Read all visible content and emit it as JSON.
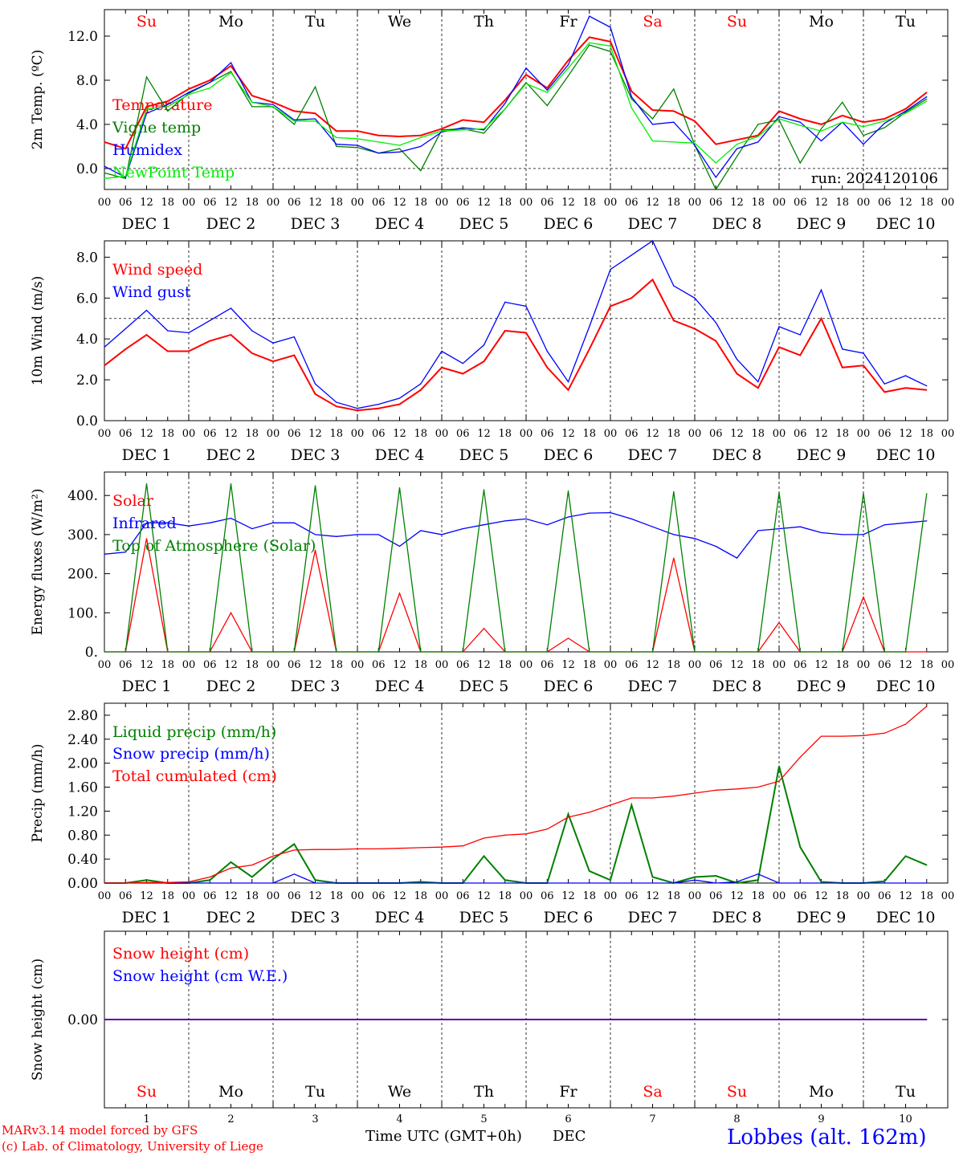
{
  "colors": {
    "red": "#ff0000",
    "green": "#008000",
    "blue": "#0000ff",
    "lightgreen": "#00ee00",
    "weekend": "#ff0000",
    "weekday": "#000000",
    "axis": "#000000"
  },
  "days": [
    "Su",
    "Mo",
    "Tu",
    "We",
    "Th",
    "Fr",
    "Sa",
    "Su",
    "Mo",
    "Tu"
  ],
  "day_weekend": [
    true,
    false,
    false,
    false,
    false,
    false,
    true,
    true,
    false,
    false
  ],
  "date_labels": [
    "DEC 1",
    "DEC 2",
    "DEC 3",
    "DEC 4",
    "DEC 5",
    "DEC 6",
    "DEC 7",
    "DEC 8",
    "DEC 9",
    "DEC 10"
  ],
  "hour_labels": [
    "00",
    "06",
    "12",
    "18"
  ],
  "bottom_day_numbers": [
    "1",
    "2",
    "3",
    "4",
    "5",
    "6",
    "7",
    "8",
    "9",
    "10"
  ],
  "footer": {
    "model": "MARv3.14 model forced by GFS",
    "lab": "(c) Lab. of Climatology, University of Liege",
    "xaxis": "Time UTC (GMT+0h)",
    "month": "DEC",
    "station": "Lobbes (alt. 162m)"
  },
  "chart_data": [
    {
      "type": "line",
      "ylabel": "2m Temp. (ºC)",
      "ylim": [
        -1.9,
        14.4
      ],
      "yticks": [
        [
          "0.0",
          0
        ],
        [
          "4.0",
          4
        ],
        [
          "8.0",
          8
        ],
        [
          "12.0",
          12
        ]
      ],
      "ref_line": 0,
      "annotation": "run: 2024120106",
      "x": [
        0,
        6,
        12,
        18,
        24,
        30,
        36,
        42,
        48,
        54,
        60,
        66,
        72,
        78,
        84,
        90,
        96,
        102,
        108,
        114,
        120,
        126,
        132,
        138,
        144,
        150,
        156,
        162,
        168,
        174,
        180,
        186,
        192,
        198,
        204,
        210,
        216,
        222,
        228,
        234
      ],
      "series": [
        {
          "name": "Temperature",
          "color": "#ff0000",
          "values": [
            2.4,
            1.8,
            5.6,
            6.1,
            7.2,
            8.0,
            9.3,
            6.6,
            6.0,
            5.2,
            5.0,
            3.4,
            3.4,
            3.0,
            2.9,
            3.0,
            3.6,
            4.4,
            4.2,
            6.2,
            8.5,
            7.3,
            9.8,
            11.9,
            11.5,
            7.0,
            5.3,
            5.2,
            4.3,
            2.2,
            2.6,
            3.0,
            5.2,
            4.5,
            4.0,
            4.8,
            4.2,
            4.5,
            5.4,
            6.9
          ]
        },
        {
          "name": "Vigne temp",
          "color": "#008000",
          "values": [
            -0.4,
            -0.9,
            8.3,
            5.2,
            6.8,
            7.8,
            8.8,
            5.6,
            5.6,
            4.0,
            7.4,
            2.0,
            1.9,
            1.4,
            1.8,
            -0.2,
            3.5,
            3.6,
            3.2,
            5.4,
            7.8,
            5.7,
            8.4,
            11.2,
            10.6,
            6.3,
            4.5,
            7.2,
            2.1,
            -1.9,
            1.1,
            4.0,
            4.4,
            0.5,
            3.6,
            6.0,
            3.0,
            3.7,
            5.1,
            6.3
          ]
        },
        {
          "name": "Humidex",
          "color": "#0000ff",
          "values": [
            0.2,
            -0.8,
            5.0,
            5.8,
            6.9,
            7.8,
            9.6,
            6.0,
            5.8,
            4.4,
            4.5,
            2.2,
            2.1,
            1.4,
            1.5,
            2.0,
            3.3,
            3.7,
            3.5,
            5.9,
            9.1,
            7.1,
            9.4,
            13.8,
            12.8,
            6.5,
            4.0,
            4.2,
            2.1,
            -0.8,
            1.8,
            2.4,
            4.7,
            4.2,
            2.5,
            4.2,
            2.2,
            4.1,
            5.2,
            6.5
          ]
        },
        {
          "name": "NewPoint Temp",
          "color": "#00ee00",
          "values": [
            -0.9,
            -0.7,
            5.4,
            5.6,
            6.7,
            7.3,
            8.7,
            6.0,
            5.6,
            4.3,
            4.3,
            2.8,
            2.7,
            2.4,
            2.1,
            2.8,
            3.4,
            3.5,
            3.6,
            5.4,
            7.7,
            6.9,
            9.1,
            11.4,
            11.1,
            5.5,
            2.5,
            2.4,
            2.3,
            0.5,
            2.2,
            2.9,
            4.5,
            3.9,
            3.4,
            4.2,
            3.8,
            4.3,
            5.0,
            6.1
          ]
        }
      ]
    },
    {
      "type": "line",
      "ylabel": "10m Wind (m/s)",
      "ylim": [
        0,
        8.8
      ],
      "yticks": [
        [
          "0.0",
          0
        ],
        [
          "2.0",
          2
        ],
        [
          "4.0",
          4
        ],
        [
          "6.0",
          6
        ],
        [
          "8.0",
          8
        ]
      ],
      "ref_line": 5,
      "x": [
        0,
        6,
        12,
        18,
        24,
        30,
        36,
        42,
        48,
        54,
        60,
        66,
        72,
        78,
        84,
        90,
        96,
        102,
        108,
        114,
        120,
        126,
        132,
        138,
        144,
        150,
        156,
        162,
        168,
        174,
        180,
        186,
        192,
        198,
        204,
        210,
        216,
        222,
        228,
        234
      ],
      "series": [
        {
          "name": "Wind speed",
          "color": "#ff0000",
          "values": [
            2.7,
            3.5,
            4.2,
            3.4,
            3.4,
            3.9,
            4.2,
            3.3,
            2.9,
            3.2,
            1.3,
            0.7,
            0.5,
            0.6,
            0.8,
            1.5,
            2.6,
            2.3,
            2.9,
            4.4,
            4.3,
            2.6,
            1.5,
            3.5,
            5.6,
            6.0,
            6.9,
            4.9,
            4.5,
            3.9,
            2.3,
            1.6,
            3.6,
            3.2,
            5.0,
            2.6,
            2.7,
            1.4,
            1.6,
            1.5
          ]
        },
        {
          "name": "Wind gust",
          "color": "#0000ff",
          "values": [
            3.6,
            4.5,
            5.4,
            4.4,
            4.3,
            4.9,
            5.5,
            4.4,
            3.8,
            4.1,
            1.8,
            0.9,
            0.6,
            0.8,
            1.1,
            1.8,
            3.4,
            2.8,
            3.7,
            5.8,
            5.6,
            3.4,
            1.9,
            4.6,
            7.4,
            8.1,
            8.8,
            6.6,
            6.0,
            4.8,
            3.0,
            1.9,
            4.6,
            4.2,
            6.4,
            3.5,
            3.3,
            1.8,
            2.2,
            1.7
          ]
        }
      ]
    },
    {
      "type": "line",
      "ylabel": "Energy fluxes (W/m²)",
      "ylim": [
        0,
        460
      ],
      "yticks": [
        [
          "0.",
          0
        ],
        [
          "100.",
          100
        ],
        [
          "200.",
          200
        ],
        [
          "300.",
          300
        ],
        [
          "400.",
          400
        ]
      ],
      "x": [
        0,
        6,
        12,
        18,
        24,
        30,
        36,
        42,
        48,
        54,
        60,
        66,
        72,
        78,
        84,
        90,
        96,
        102,
        108,
        114,
        120,
        126,
        132,
        138,
        144,
        150,
        156,
        162,
        168,
        174,
        180,
        186,
        192,
        198,
        204,
        210,
        216,
        222,
        228,
        234
      ],
      "series": [
        {
          "name": "Solar",
          "color": "#ff0000",
          "values": [
            0,
            0,
            290,
            0,
            0,
            0,
            100,
            0,
            0,
            0,
            260,
            0,
            0,
            0,
            150,
            0,
            0,
            0,
            60,
            0,
            0,
            0,
            35,
            0,
            0,
            0,
            0,
            240,
            0,
            0,
            0,
            0,
            75,
            0,
            0,
            0,
            140,
            0,
            0,
            0
          ]
        },
        {
          "name": "Infrared",
          "color": "#0000ff",
          "values": [
            250,
            255,
            330,
            330,
            322,
            330,
            342,
            315,
            330,
            330,
            300,
            295,
            300,
            300,
            270,
            310,
            300,
            315,
            325,
            335,
            340,
            325,
            345,
            355,
            356,
            340,
            320,
            300,
            290,
            270,
            240,
            310,
            315,
            320,
            305,
            300,
            300,
            325,
            330,
            335
          ]
        },
        {
          "name": "Top of Atmosphere (Solar)",
          "color": "#008000",
          "values": [
            0,
            0,
            430,
            0,
            0,
            0,
            430,
            0,
            0,
            0,
            425,
            0,
            0,
            0,
            420,
            0,
            0,
            0,
            415,
            0,
            0,
            0,
            412,
            0,
            0,
            0,
            0,
            410,
            0,
            0,
            0,
            0,
            408,
            0,
            0,
            0,
            406,
            0,
            0,
            405
          ]
        }
      ]
    },
    {
      "type": "line",
      "ylabel": "Precip (mm/h)",
      "ylim": [
        0,
        3.0
      ],
      "yticks": [
        [
          "0.00",
          0
        ],
        [
          "0.40",
          0.4
        ],
        [
          "0.80",
          0.8
        ],
        [
          "1.20",
          1.2
        ],
        [
          "1.60",
          1.6
        ],
        [
          "2.00",
          2.0
        ],
        [
          "2.40",
          2.4
        ],
        [
          "2.80",
          2.8
        ]
      ],
      "x": [
        0,
        6,
        12,
        18,
        24,
        30,
        36,
        42,
        48,
        54,
        60,
        66,
        72,
        78,
        84,
        90,
        96,
        102,
        108,
        114,
        120,
        126,
        132,
        138,
        144,
        150,
        156,
        162,
        168,
        174,
        180,
        186,
        192,
        198,
        204,
        210,
        216,
        222,
        228,
        234
      ],
      "series": [
        {
          "name": "Liquid precip (mm/h)",
          "color": "#008000",
          "values": [
            0,
            0,
            0.05,
            0,
            0,
            0.05,
            0.35,
            0.1,
            0.4,
            0.65,
            0.05,
            0,
            0,
            0,
            0,
            0.02,
            0,
            0,
            0.45,
            0.05,
            0,
            0,
            1.15,
            0.2,
            0.05,
            1.3,
            0.1,
            0,
            0.1,
            0.12,
            0,
            0.05,
            1.95,
            0.6,
            0.02,
            0,
            0,
            0.03,
            0.45,
            0.3
          ]
        },
        {
          "name": "Snow precip (mm/h)",
          "color": "#0000ff",
          "values": [
            0,
            0,
            0,
            0,
            0,
            0,
            0,
            0,
            0,
            0.15,
            0,
            0,
            0,
            0,
            0,
            0,
            0,
            0,
            0,
            0,
            0,
            0,
            0,
            0,
            0,
            0,
            0,
            0,
            0.05,
            0,
            0.02,
            0.15,
            0,
            0,
            0,
            0,
            0,
            0,
            0,
            0
          ]
        },
        {
          "name": "Total cumulated (cm)",
          "color": "#ff0000",
          "values": [
            0,
            0,
            0.01,
            0.01,
            0.02,
            0.1,
            0.25,
            0.3,
            0.45,
            0.55,
            0.56,
            0.56,
            0.57,
            0.57,
            0.58,
            0.59,
            0.6,
            0.62,
            0.75,
            0.8,
            0.82,
            0.9,
            1.1,
            1.18,
            1.3,
            1.42,
            1.42,
            1.45,
            1.5,
            1.55,
            1.57,
            1.6,
            1.7,
            2.1,
            2.45,
            2.45,
            2.46,
            2.5,
            2.65,
            2.95
          ]
        }
      ]
    },
    {
      "type": "line",
      "ylabel": "Snow height (cm)",
      "ylim": [
        -1,
        1
      ],
      "yticks": [
        [
          "0.00",
          0
        ]
      ],
      "x": [
        0,
        234
      ],
      "series": [
        {
          "name": "Snow height (cm)",
          "color": "#ff0000",
          "values": [
            0,
            0
          ]
        },
        {
          "name": "Snow height (cm W.E.)",
          "color": "#0000ff",
          "values": [
            0,
            0
          ]
        }
      ]
    }
  ]
}
